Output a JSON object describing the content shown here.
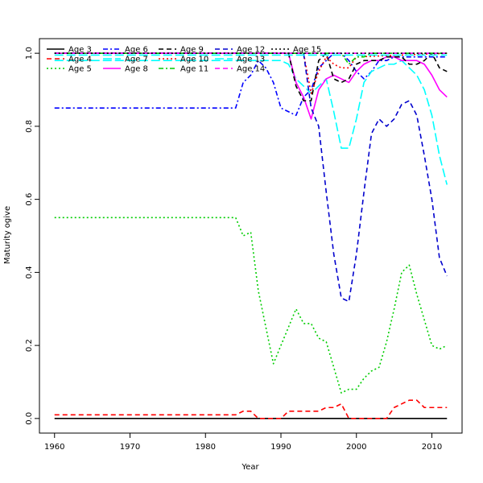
{
  "chart_data": {
    "type": "line",
    "title": "",
    "xlabel": "Year",
    "ylabel": "Maturity ogive",
    "xlim": [
      1958,
      2014
    ],
    "ylim": [
      -0.04,
      1.04
    ],
    "xticks": [
      1960,
      1970,
      1980,
      1990,
      2000,
      2010
    ],
    "yticks": [
      0.0,
      0.2,
      0.4,
      0.6,
      0.8,
      1.0
    ],
    "grid": false,
    "legend_position": "top-left",
    "series": [
      {
        "name": "Age 3",
        "color": "#000000",
        "dash": "solid",
        "x": [
          1960,
          2012
        ],
        "y": [
          0.0,
          0.0
        ]
      },
      {
        "name": "Age 4",
        "color": "#ff0000",
        "dash": "dashed",
        "x": [
          1960,
          1984,
          1985,
          1986,
          1987,
          1988,
          1989,
          1990,
          1991,
          1992,
          1993,
          1994,
          1995,
          1996,
          1997,
          1998,
          1999,
          2000,
          2001,
          2002,
          2003,
          2004,
          2005,
          2006,
          2007,
          2008,
          2009,
          2010,
          2011,
          2012
        ],
        "y": [
          0.01,
          0.01,
          0.02,
          0.02,
          0.0,
          0.0,
          0.0,
          0.0,
          0.02,
          0.02,
          0.02,
          0.02,
          0.02,
          0.03,
          0.03,
          0.04,
          0.0,
          0.0,
          0.0,
          0.0,
          0.0,
          0.0,
          0.03,
          0.04,
          0.05,
          0.05,
          0.03,
          0.03,
          0.03,
          0.03
        ]
      },
      {
        "name": "Age 5",
        "color": "#00cd00",
        "dash": "dotted",
        "x": [
          1960,
          1984,
          1985,
          1986,
          1987,
          1988,
          1989,
          1990,
          1991,
          1992,
          1993,
          1994,
          1995,
          1996,
          1997,
          1998,
          1999,
          2000,
          2001,
          2002,
          2003,
          2004,
          2005,
          2006,
          2007,
          2008,
          2009,
          2010,
          2011,
          2012
        ],
        "y": [
          0.55,
          0.55,
          0.5,
          0.51,
          0.35,
          0.25,
          0.15,
          0.2,
          0.25,
          0.3,
          0.26,
          0.26,
          0.22,
          0.21,
          0.14,
          0.07,
          0.08,
          0.08,
          0.11,
          0.13,
          0.14,
          0.21,
          0.3,
          0.4,
          0.42,
          0.34,
          0.27,
          0.2,
          0.19,
          0.2
        ]
      },
      {
        "name": "Age 6",
        "color": "#0000ff",
        "dash": "dashdot",
        "x": [
          1960,
          1984,
          1985,
          1986,
          1987,
          1988,
          1989,
          1990,
          1991,
          1992,
          1993,
          1994,
          1995,
          1996,
          1997,
          1998,
          1999,
          2000,
          2001,
          2002,
          2003,
          2004,
          2005,
          2006,
          2007,
          2008,
          2009,
          2010,
          2011,
          2012
        ],
        "y": [
          0.85,
          0.85,
          0.92,
          0.94,
          0.98,
          0.96,
          0.92,
          0.85,
          0.84,
          0.83,
          0.88,
          0.9,
          0.96,
          0.98,
          1.0,
          1.0,
          0.98,
          0.95,
          0.93,
          0.95,
          0.98,
          0.98,
          0.99,
          0.99,
          0.99,
          0.99,
          0.99,
          0.99,
          0.99,
          0.99
        ]
      },
      {
        "name": "Age 7",
        "color": "#00ffff",
        "dash": "longdash",
        "x": [
          1960,
          1990,
          1991,
          1992,
          1993,
          1994,
          1995,
          1996,
          1997,
          1998,
          1999,
          2000,
          2001,
          2002,
          2003,
          2004,
          2005,
          2006,
          2007,
          2008,
          2009,
          2010,
          2011,
          2012
        ],
        "y": [
          0.98,
          0.98,
          0.97,
          0.93,
          0.91,
          0.89,
          0.91,
          0.93,
          0.84,
          0.74,
          0.74,
          0.82,
          0.92,
          0.95,
          0.96,
          0.97,
          0.97,
          0.98,
          0.96,
          0.94,
          0.9,
          0.83,
          0.72,
          0.64
        ]
      },
      {
        "name": "Age 8",
        "color": "#ff00ff",
        "dash": "solid",
        "x": [
          1960,
          1991,
          1992,
          1993,
          1994,
          1995,
          1996,
          1997,
          1998,
          1999,
          2000,
          2001,
          2002,
          2003,
          2004,
          2005,
          2006,
          2007,
          2008,
          2009,
          2010,
          2011,
          2012
        ],
        "y": [
          1.0,
          1.0,
          0.92,
          0.88,
          0.82,
          0.9,
          0.93,
          0.94,
          0.93,
          0.92,
          0.95,
          0.97,
          0.98,
          0.98,
          0.99,
          0.99,
          0.98,
          0.98,
          0.98,
          0.97,
          0.94,
          0.9,
          0.88
        ]
      },
      {
        "name": "Age 9",
        "color": "#000000",
        "dash": "dashed",
        "x": [
          1960,
          1991,
          1992,
          1993,
          1994,
          1995,
          1996,
          1997,
          1998,
          1999,
          2000,
          2001,
          2002,
          2003,
          2004,
          2005,
          2006,
          2007,
          2008,
          2009,
          2010,
          2011,
          2012
        ],
        "y": [
          1.0,
          1.0,
          0.91,
          0.87,
          0.87,
          0.98,
          1.0,
          0.93,
          0.92,
          0.93,
          0.97,
          0.98,
          0.98,
          0.98,
          0.99,
          0.99,
          0.99,
          0.97,
          0.97,
          0.98,
          1.0,
          0.96,
          0.95
        ]
      },
      {
        "name": "Age 10",
        "color": "#ff0000",
        "dash": "dotted",
        "x": [
          1960,
          1993,
          1994,
          1995,
          1996,
          1997,
          1998,
          1999,
          2000,
          2012
        ],
        "y": [
          1.0,
          1.0,
          0.89,
          0.95,
          0.99,
          0.97,
          0.96,
          0.96,
          0.99,
          1.0
        ]
      },
      {
        "name": "Age 11",
        "color": "#00cd00",
        "dash": "dashdot",
        "x": [
          1960,
          1998,
          1999,
          2000,
          2001,
          2002,
          2012
        ],
        "y": [
          1.0,
          1.0,
          0.97,
          0.99,
          0.99,
          1.0,
          1.0
        ]
      },
      {
        "name": "Age 12",
        "color": "#0000cd",
        "dash": "dashed",
        "x": [
          1960,
          1993,
          1994,
          1995,
          1996,
          1997,
          1998,
          1999,
          2000,
          2001,
          2002,
          2003,
          2004,
          2005,
          2006,
          2007,
          2008,
          2009,
          2010,
          2011,
          2012
        ],
        "y": [
          1.0,
          1.0,
          0.85,
          0.8,
          0.62,
          0.45,
          0.33,
          0.32,
          0.45,
          0.62,
          0.78,
          0.82,
          0.8,
          0.82,
          0.86,
          0.87,
          0.83,
          0.72,
          0.6,
          0.44,
          0.39
        ]
      },
      {
        "name": "Age 13",
        "color": "#00ffff",
        "dash": "longdash",
        "x": [
          1960,
          2012
        ],
        "y": [
          0.995,
          0.995
        ]
      },
      {
        "name": "Age 14",
        "color": "#ff00ff",
        "dash": "dashed",
        "x": [
          1960,
          2012
        ],
        "y": [
          1.0,
          1.0
        ]
      },
      {
        "name": "Age 15",
        "color": "#000000",
        "dash": "dotted",
        "x": [
          1960,
          2012
        ],
        "y": [
          1.0,
          1.0
        ]
      }
    ]
  }
}
